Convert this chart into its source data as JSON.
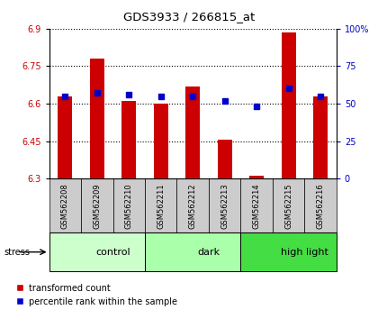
{
  "title": "GDS3933 / 266815_at",
  "samples": [
    "GSM562208",
    "GSM562209",
    "GSM562210",
    "GSM562211",
    "GSM562212",
    "GSM562213",
    "GSM562214",
    "GSM562215",
    "GSM562216"
  ],
  "red_values": [
    6.63,
    6.78,
    6.61,
    6.6,
    6.67,
    6.455,
    6.31,
    6.885,
    6.63
  ],
  "blue_values": [
    55,
    57,
    56,
    55,
    55,
    52,
    48,
    60,
    55
  ],
  "ylim_left": [
    6.3,
    6.9
  ],
  "ylim_right": [
    0,
    100
  ],
  "yticks_left": [
    6.3,
    6.45,
    6.6,
    6.75,
    6.9
  ],
  "yticks_right": [
    0,
    25,
    50,
    75,
    100
  ],
  "ytick_labels_left": [
    "6.3",
    "6.45",
    "6.6",
    "6.75",
    "6.9"
  ],
  "ytick_labels_right": [
    "0",
    "25",
    "50",
    "75",
    "100%"
  ],
  "groups": [
    {
      "label": "control",
      "start": 0,
      "end": 3,
      "color": "#ccffcc"
    },
    {
      "label": "dark",
      "start": 3,
      "end": 6,
      "color": "#aaffaa"
    },
    {
      "label": "high light",
      "start": 6,
      "end": 9,
      "color": "#44dd44"
    }
  ],
  "red_color": "#cc0000",
  "blue_color": "#0000cc",
  "bar_width": 0.45,
  "legend_labels": [
    "transformed count",
    "percentile rank within the sample"
  ],
  "stress_label": "stress",
  "left_ylabel_color": "#cc0000",
  "right_ylabel_color": "#0000cc",
  "tick_area_color": "#cccccc"
}
